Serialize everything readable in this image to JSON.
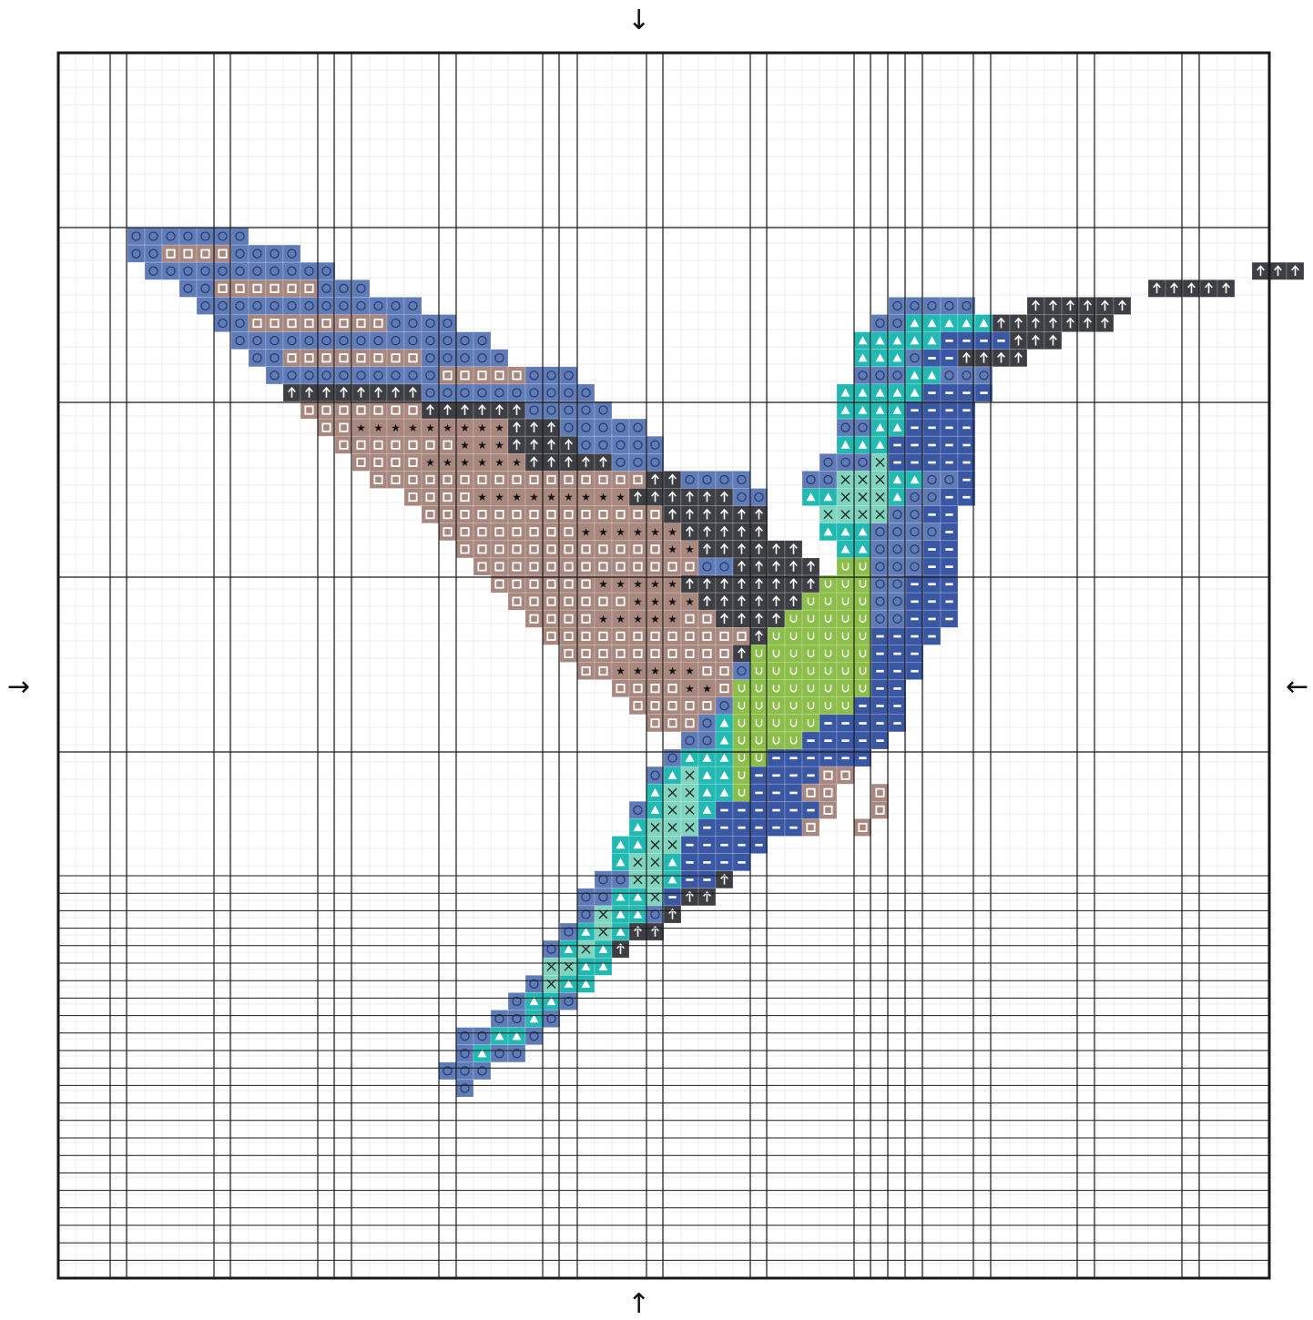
{
  "pattern": {
    "symbols": {
      "O": {
        "color": "#5f7bb8",
        "glyph": "circle"
      },
      "S": {
        "color": "#a8877f",
        "glyph": "square"
      },
      "*": {
        "color": "#a8877f",
        "glyph": "star"
      },
      "^": {
        "color": "#3d3f44",
        "glyph": "arrow-up"
      },
      "T": {
        "color": "#22b9b3",
        "glyph": "triangle"
      },
      "X": {
        "color": "#7fd4bf",
        "glyph": "cross"
      },
      "U": {
        "color": "#8cbf4a",
        "glyph": "u"
      },
      "-": {
        "color": "#3a57a4",
        "glyph": "dash"
      }
    },
    "runs": [
      [
        0,
        2,
        "O",
        7
      ],
      [
        1,
        2,
        "O",
        2
      ],
      [
        1,
        4,
        "S",
        4
      ],
      [
        1,
        8,
        "O",
        4
      ],
      [
        2,
        3,
        "O",
        11
      ],
      [
        3,
        5,
        "O",
        2
      ],
      [
        3,
        7,
        "S",
        6
      ],
      [
        3,
        13,
        "O",
        3
      ],
      [
        4,
        6,
        "O",
        13
      ],
      [
        5,
        7,
        "O",
        2
      ],
      [
        5,
        9,
        "S",
        8
      ],
      [
        5,
        17,
        "O",
        4
      ],
      [
        6,
        8,
        "O",
        15
      ],
      [
        7,
        9,
        "O",
        2
      ],
      [
        7,
        11,
        "S",
        8
      ],
      [
        7,
        19,
        "O",
        5
      ],
      [
        8,
        10,
        "O",
        10
      ],
      [
        8,
        20,
        "S",
        5
      ],
      [
        8,
        25,
        "O",
        3
      ],
      [
        9,
        11,
        "^",
        8
      ],
      [
        9,
        19,
        "O",
        10
      ],
      [
        10,
        12,
        "S",
        7
      ],
      [
        10,
        19,
        "^",
        6
      ],
      [
        10,
        25,
        "O",
        5
      ],
      [
        11,
        13,
        "S",
        2
      ],
      [
        11,
        15,
        "*",
        9
      ],
      [
        11,
        24,
        "^",
        3
      ],
      [
        11,
        27,
        "O",
        5
      ],
      [
        12,
        14,
        "S",
        7
      ],
      [
        12,
        21,
        "*",
        3
      ],
      [
        12,
        24,
        "^",
        4
      ],
      [
        12,
        28,
        "O",
        5
      ],
      [
        13,
        15,
        "S",
        4
      ],
      [
        13,
        19,
        "*",
        6
      ],
      [
        13,
        25,
        "^",
        5
      ],
      [
        13,
        30,
        "O",
        3
      ],
      [
        14,
        16,
        "S",
        16
      ],
      [
        14,
        32,
        "^",
        2
      ],
      [
        14,
        34,
        "O",
        4
      ],
      [
        15,
        18,
        "S",
        4
      ],
      [
        15,
        22,
        "*",
        9
      ],
      [
        15,
        31,
        "^",
        6
      ],
      [
        15,
        37,
        "O",
        2
      ],
      [
        16,
        19,
        "S",
        14
      ],
      [
        16,
        33,
        "^",
        6
      ],
      [
        17,
        20,
        "S",
        8
      ],
      [
        17,
        28,
        "*",
        6
      ],
      [
        17,
        34,
        "^",
        5
      ],
      [
        18,
        21,
        "S",
        12
      ],
      [
        18,
        33,
        "*",
        2
      ],
      [
        18,
        35,
        "^",
        6
      ],
      [
        19,
        22,
        "S",
        13
      ],
      [
        19,
        35,
        "O",
        2
      ],
      [
        19,
        37,
        "^",
        5
      ],
      [
        20,
        23,
        "S",
        6
      ],
      [
        20,
        29,
        "*",
        5
      ],
      [
        20,
        34,
        "^",
        8
      ],
      [
        21,
        24,
        "S",
        7
      ],
      [
        21,
        31,
        "*",
        4
      ],
      [
        21,
        35,
        "^",
        8
      ],
      [
        22,
        25,
        "S",
        4
      ],
      [
        22,
        29,
        "*",
        5
      ],
      [
        22,
        34,
        "S",
        2
      ],
      [
        22,
        36,
        "^",
        6
      ],
      [
        23,
        26,
        "S",
        12
      ],
      [
        23,
        38,
        "^",
        4
      ],
      [
        24,
        27,
        "S",
        10
      ],
      [
        24,
        37,
        "^",
        4
      ],
      [
        25,
        28,
        "S",
        2
      ],
      [
        25,
        30,
        "*",
        5
      ],
      [
        25,
        35,
        "S",
        3
      ],
      [
        25,
        38,
        "^",
        2
      ],
      [
        26,
        30,
        "S",
        4
      ],
      [
        26,
        34,
        "*",
        2
      ],
      [
        26,
        36,
        "S",
        4
      ],
      [
        27,
        31,
        "S",
        5
      ],
      [
        27,
        36,
        "S",
        2
      ],
      [
        28,
        32,
        "S",
        4
      ],
      [
        28,
        36,
        "O",
        3
      ],
      [
        0,
        0,
        "O",
        0
      ]
    ],
    "bird_cells": [
      [
        8,
        44,
        "O",
        3
      ],
      [
        8,
        47,
        "T",
        2
      ],
      [
        8,
        49,
        "O",
        3
      ],
      [
        9,
        43,
        "T",
        5
      ],
      [
        9,
        48,
        "-",
        4
      ],
      [
        10,
        43,
        "T",
        4
      ],
      [
        10,
        47,
        "-",
        4
      ],
      [
        11,
        43,
        "O",
        2
      ],
      [
        11,
        45,
        "T",
        2
      ],
      [
        11,
        47,
        "-",
        4
      ],
      [
        12,
        43,
        "T",
        3
      ],
      [
        12,
        46,
        "-",
        5
      ],
      [
        13,
        42,
        "O",
        3
      ],
      [
        13,
        45,
        "X",
        1
      ],
      [
        13,
        46,
        "-",
        5
      ],
      [
        14,
        41,
        "O",
        2
      ],
      [
        14,
        43,
        "X",
        3
      ],
      [
        14,
        46,
        "T",
        2
      ],
      [
        14,
        48,
        "O",
        2
      ],
      [
        14,
        50,
        "-",
        1
      ],
      [
        15,
        41,
        "T",
        2
      ],
      [
        15,
        43,
        "X",
        3
      ],
      [
        15,
        46,
        "T",
        1
      ],
      [
        15,
        47,
        "O",
        2
      ],
      [
        15,
        49,
        "-",
        2
      ],
      [
        16,
        42,
        "X",
        4
      ],
      [
        16,
        46,
        "O",
        2
      ],
      [
        16,
        48,
        "-",
        2
      ],
      [
        17,
        42,
        "T",
        3
      ],
      [
        17,
        45,
        "O",
        4
      ],
      [
        17,
        49,
        "-",
        1
      ],
      [
        18,
        43,
        "T",
        2
      ],
      [
        18,
        45,
        "O",
        3
      ],
      [
        18,
        48,
        "-",
        2
      ],
      [
        19,
        43,
        "U",
        2
      ],
      [
        19,
        45,
        "O",
        3
      ],
      [
        19,
        48,
        "-",
        2
      ],
      [
        20,
        42,
        "U",
        3
      ],
      [
        20,
        45,
        "O",
        2
      ],
      [
        20,
        47,
        "-",
        3
      ],
      [
        21,
        41,
        "U",
        4
      ],
      [
        21,
        45,
        "O",
        2
      ],
      [
        21,
        47,
        "-",
        3
      ],
      [
        22,
        40,
        "U",
        5
      ],
      [
        22,
        45,
        "O",
        2
      ],
      [
        22,
        47,
        "-",
        3
      ],
      [
        23,
        39,
        "U",
        6
      ],
      [
        23,
        45,
        "-",
        4
      ],
      [
        24,
        38,
        "U",
        7
      ],
      [
        24,
        45,
        "-",
        3
      ],
      [
        25,
        37,
        "O",
        1
      ],
      [
        25,
        38,
        "U",
        7
      ],
      [
        25,
        45,
        "-",
        3
      ],
      [
        26,
        37,
        "U",
        8
      ],
      [
        26,
        45,
        "-",
        2
      ],
      [
        27,
        36,
        "O",
        1
      ],
      [
        27,
        37,
        "U",
        7
      ],
      [
        27,
        44,
        "-",
        3
      ],
      [
        28,
        35,
        "O",
        1
      ],
      [
        28,
        36,
        "T",
        1
      ],
      [
        28,
        37,
        "U",
        5
      ],
      [
        28,
        42,
        "-",
        5
      ],
      [
        29,
        34,
        "O",
        2
      ],
      [
        29,
        36,
        "T",
        1
      ],
      [
        29,
        37,
        "U",
        4
      ],
      [
        29,
        41,
        "-",
        5
      ],
      [
        30,
        33,
        "O",
        1
      ],
      [
        30,
        34,
        "T",
        3
      ],
      [
        30,
        37,
        "U",
        2
      ],
      [
        30,
        39,
        "-",
        6
      ],
      [
        31,
        32,
        "O",
        1
      ],
      [
        31,
        33,
        "T",
        1
      ],
      [
        31,
        34,
        "X",
        1
      ],
      [
        31,
        35,
        "T",
        2
      ],
      [
        31,
        37,
        "U",
        1
      ],
      [
        31,
        38,
        "-",
        6
      ],
      [
        32,
        32,
        "T",
        1
      ],
      [
        32,
        33,
        "X",
        2
      ],
      [
        32,
        35,
        "T",
        2
      ],
      [
        32,
        37,
        "U",
        1
      ],
      [
        32,
        38,
        "-",
        5
      ],
      [
        33,
        31,
        "O",
        1
      ],
      [
        33,
        32,
        "T",
        1
      ],
      [
        33,
        33,
        "X",
        2
      ],
      [
        33,
        35,
        "T",
        1
      ],
      [
        33,
        36,
        "-",
        7
      ],
      [
        34,
        31,
        "T",
        1
      ],
      [
        34,
        32,
        "X",
        3
      ],
      [
        34,
        35,
        "-",
        6
      ],
      [
        35,
        30,
        "T",
        2
      ],
      [
        35,
        32,
        "X",
        2
      ],
      [
        35,
        34,
        "-",
        5
      ],
      [
        36,
        30,
        "T",
        1
      ],
      [
        36,
        31,
        "X",
        2
      ],
      [
        36,
        33,
        "T",
        1
      ],
      [
        36,
        34,
        "-",
        4
      ],
      [
        37,
        29,
        "O",
        2
      ],
      [
        37,
        31,
        "X",
        2
      ],
      [
        37,
        33,
        "T",
        1
      ],
      [
        37,
        34,
        "-",
        2
      ],
      [
        37,
        36,
        "^",
        1
      ],
      [
        38,
        28,
        "O",
        2
      ],
      [
        38,
        30,
        "T",
        2
      ],
      [
        38,
        32,
        "X",
        1
      ],
      [
        38,
        33,
        "-",
        1
      ],
      [
        38,
        34,
        "^",
        2
      ],
      [
        39,
        28,
        "O",
        1
      ],
      [
        39,
        29,
        "X",
        1
      ],
      [
        39,
        30,
        "T",
        2
      ],
      [
        39,
        32,
        "O",
        1
      ],
      [
        39,
        33,
        "^",
        1
      ],
      [
        40,
        27,
        "O",
        1
      ],
      [
        40,
        28,
        "T",
        1
      ],
      [
        40,
        29,
        "X",
        1
      ],
      [
        40,
        30,
        "T",
        1
      ],
      [
        40,
        31,
        "^",
        2
      ],
      [
        41,
        26,
        "O",
        1
      ],
      [
        41,
        27,
        "T",
        1
      ],
      [
        41,
        28,
        "X",
        1
      ],
      [
        41,
        29,
        "T",
        1
      ],
      [
        41,
        30,
        "^",
        1
      ],
      [
        42,
        26,
        "X",
        2
      ],
      [
        42,
        28,
        "T",
        2
      ],
      [
        43,
        25,
        "O",
        1
      ],
      [
        43,
        26,
        "X",
        1
      ],
      [
        43,
        27,
        "T",
        2
      ],
      [
        44,
        24,
        "O",
        1
      ],
      [
        44,
        25,
        "T",
        2
      ],
      [
        44,
        27,
        "O",
        1
      ],
      [
        45,
        23,
        "O",
        2
      ],
      [
        45,
        25,
        "T",
        1
      ],
      [
        45,
        26,
        "O",
        1
      ],
      [
        46,
        21,
        "O",
        2
      ],
      [
        46,
        23,
        "T",
        2
      ],
      [
        46,
        25,
        "O",
        1
      ],
      [
        47,
        21,
        "O",
        1
      ],
      [
        47,
        22,
        "T",
        1
      ],
      [
        47,
        23,
        "O",
        2
      ],
      [
        48,
        20,
        "O",
        3
      ],
      [
        49,
        21,
        "O",
        1
      ],
      [
        4,
        46,
        "O",
        5
      ],
      [
        5,
        45,
        "O",
        2
      ],
      [
        5,
        47,
        "T",
        5
      ],
      [
        5,
        52,
        "^",
        4
      ],
      [
        5,
        56,
        "^",
        3
      ],
      [
        6,
        44,
        "T",
        5
      ],
      [
        6,
        49,
        "-",
        4
      ],
      [
        6,
        53,
        "^",
        3
      ],
      [
        7,
        44,
        "T",
        1
      ],
      [
        7,
        45,
        "T",
        2
      ],
      [
        7,
        47,
        "O",
        1
      ],
      [
        7,
        48,
        "-",
        2
      ],
      [
        7,
        50,
        "^",
        4
      ],
      [
        3,
        61,
        "^",
        5
      ],
      [
        3,
        66,
        "O",
        0
      ],
      [
        2,
        67,
        "^",
        3
      ],
      [
        4,
        54,
        "^",
        6
      ],
      [
        31,
        42,
        "S",
        2
      ],
      [
        32,
        41,
        "S",
        2
      ],
      [
        32,
        45,
        "S",
        1
      ],
      [
        33,
        42,
        "S",
        1
      ],
      [
        33,
        45,
        "S",
        1
      ],
      [
        34,
        41,
        "S",
        1
      ],
      [
        34,
        44,
        "S",
        1
      ],
      [
        0,
        0,
        "O",
        0
      ]
    ]
  }
}
